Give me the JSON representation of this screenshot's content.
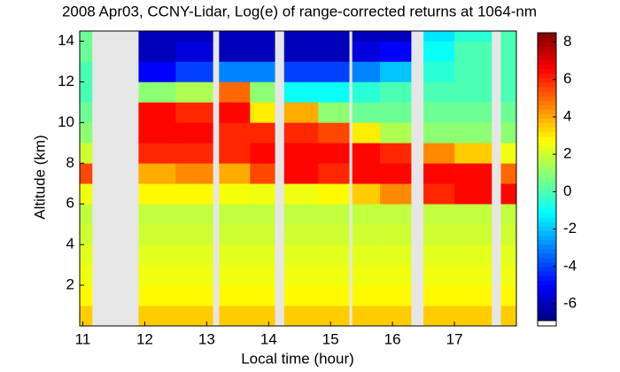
{
  "chart_data": {
    "type": "heatmap",
    "title": "2008 Apr03, CCNY-Lidar, Log(e) of range-corrected returns at 1064-nm",
    "xlabel": "Local time (hour)",
    "ylabel": "Altitude (km)",
    "x_edges": [
      10.95,
      11.15,
      11.9,
      12.5,
      13.1,
      13.2,
      13.7,
      14.1,
      14.25,
      14.8,
      15.3,
      15.35,
      15.8,
      16.3,
      16.5,
      17.0,
      17.6,
      17.75,
      18.0
    ],
    "y_edges": [
      0,
      1,
      2,
      3,
      4,
      5,
      6,
      7,
      8,
      9,
      10,
      11,
      12,
      13,
      14,
      14.5
    ],
    "z": [
      [
        3.5,
        null,
        3.5,
        3.5,
        null,
        3.5,
        3.5,
        null,
        3.5,
        3.5,
        null,
        3.5,
        3.5,
        null,
        3.5,
        3.5,
        null,
        3.5
      ],
      [
        2.8,
        null,
        2.8,
        2.8,
        null,
        2.8,
        2.8,
        null,
        2.8,
        2.8,
        null,
        2.8,
        2.8,
        null,
        2.8,
        2.8,
        null,
        2.8
      ],
      [
        2.5,
        null,
        2.5,
        2.5,
        null,
        2.5,
        2.5,
        null,
        2.5,
        2.5,
        null,
        2.5,
        2.5,
        null,
        2.5,
        2.5,
        null,
        2.5
      ],
      [
        2.3,
        null,
        2.3,
        2.3,
        null,
        2.3,
        2.3,
        null,
        2.3,
        2.3,
        null,
        2.3,
        2.3,
        null,
        2.3,
        2.3,
        null,
        2.3
      ],
      [
        2,
        null,
        2,
        2,
        null,
        2,
        2,
        null,
        2,
        2,
        null,
        2,
        2,
        null,
        2,
        2,
        null,
        2
      ],
      [
        1.8,
        null,
        1.8,
        1.8,
        null,
        1.8,
        1.8,
        null,
        1.8,
        1.8,
        null,
        1.8,
        1.8,
        null,
        1.8,
        1.8,
        null,
        1.8
      ],
      [
        2.5,
        null,
        2.8,
        2.8,
        null,
        2.6,
        2.5,
        null,
        2.5,
        2.8,
        null,
        3.5,
        4.5,
        null,
        6,
        6.5,
        null,
        6.5
      ],
      [
        5.5,
        null,
        4,
        4.5,
        null,
        4,
        5.5,
        null,
        6.5,
        6,
        null,
        6.5,
        6.5,
        null,
        6.5,
        6.5,
        null,
        5
      ],
      [
        2,
        null,
        6,
        6,
        null,
        6,
        6.5,
        null,
        6.5,
        6.5,
        null,
        6.5,
        6,
        null,
        4.5,
        3.5,
        null,
        2.5
      ],
      [
        1,
        null,
        6.5,
        6.5,
        null,
        6,
        6,
        null,
        6,
        5.5,
        null,
        3,
        1.5,
        null,
        1,
        1,
        null,
        1
      ],
      [
        0.5,
        null,
        6.5,
        6,
        null,
        6.5,
        3,
        null,
        4,
        1,
        null,
        0.5,
        0.5,
        null,
        0.5,
        0.5,
        null,
        0.5
      ],
      [
        0,
        null,
        1,
        1.5,
        null,
        5,
        1,
        null,
        -1,
        -1,
        null,
        -0.5,
        0,
        null,
        0,
        0,
        null,
        0
      ],
      [
        0,
        null,
        -5,
        -4,
        null,
        -3,
        -3,
        null,
        -4,
        -4,
        null,
        -3,
        -2,
        null,
        -0.5,
        0,
        null,
        0
      ],
      [
        0.5,
        null,
        -6,
        -5.5,
        null,
        -6,
        -6,
        null,
        -6,
        -6,
        null,
        -5.5,
        -5,
        null,
        -1,
        0,
        null,
        0
      ],
      [
        0.5,
        null,
        -6,
        -6,
        null,
        -6,
        -6,
        null,
        -6,
        -6,
        null,
        -6,
        -6,
        null,
        -1.5,
        -0.5,
        null,
        0
      ]
    ],
    "colormap": "jet",
    "missing_color": "#e6e6e6",
    "xlim": [
      10.95,
      18.0
    ],
    "xticks": [
      11,
      12,
      13,
      14,
      15,
      16,
      17
    ],
    "ylim": [
      0,
      14.5
    ],
    "yticks": [
      2,
      4,
      6,
      8,
      10,
      12,
      14
    ],
    "clim": [
      -6.9,
      8.5
    ],
    "colorbar_ticks": [
      -6,
      -4,
      -2,
      0,
      2,
      4,
      6,
      8
    ]
  }
}
